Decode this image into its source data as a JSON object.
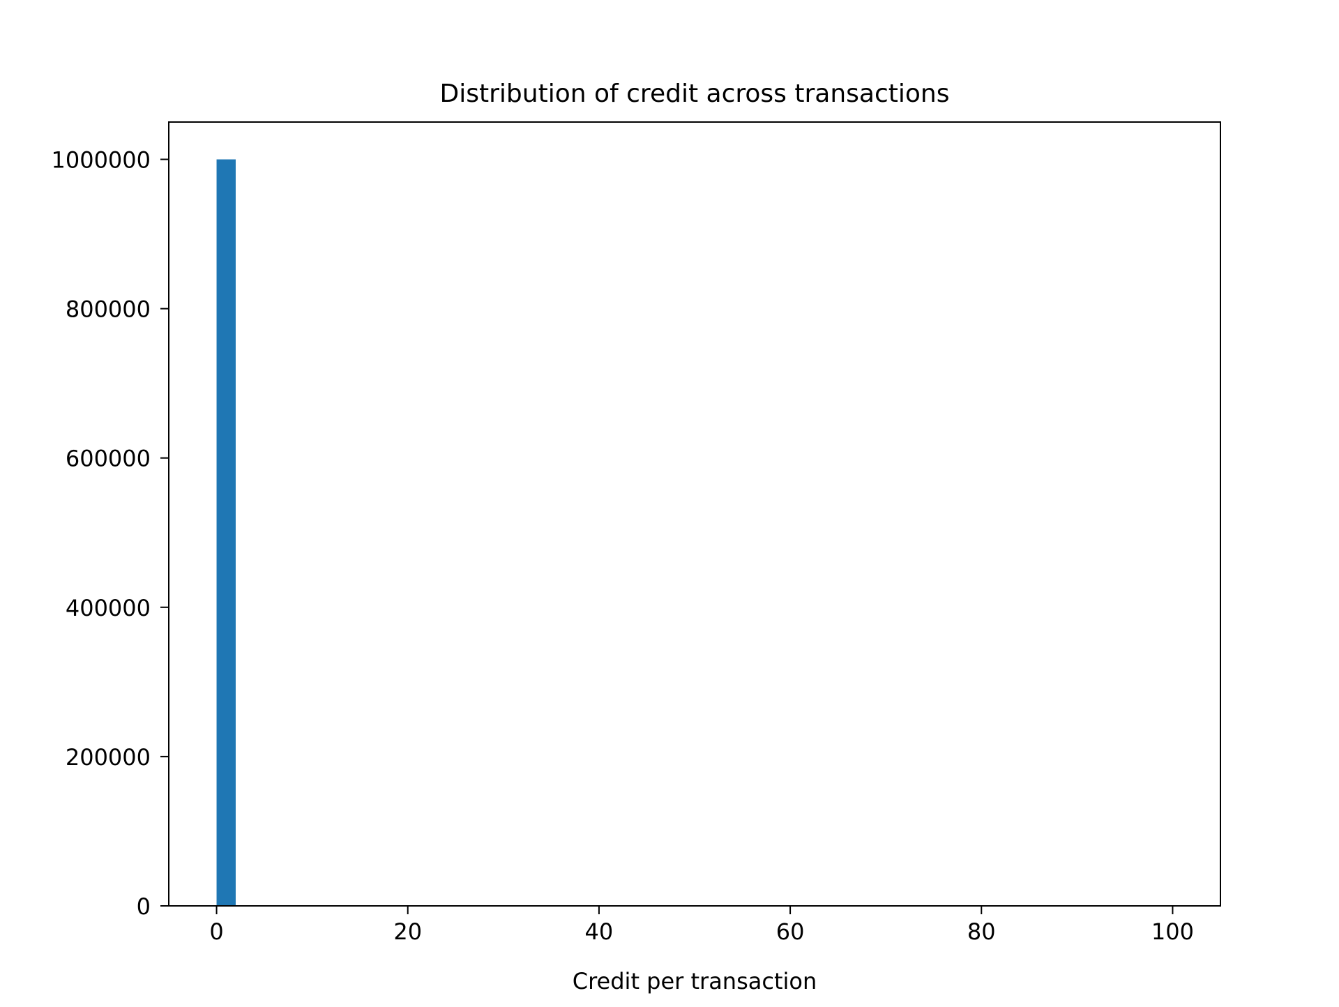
{
  "chart_data": {
    "type": "bar",
    "title": "Distribution of credit across transactions",
    "xlabel": "Credit per transaction",
    "ylabel": "",
    "xlim": [
      -5,
      105
    ],
    "ylim": [
      0,
      1050000
    ],
    "x_ticks": [
      0,
      20,
      40,
      60,
      80,
      100
    ],
    "y_ticks": [
      0,
      200000,
      400000,
      600000,
      800000,
      1000000
    ],
    "bins": [
      {
        "x0": 0,
        "x1": 2,
        "count": 1000000
      }
    ],
    "grid": false,
    "legend": "none",
    "bar_color": "#1f77b4"
  }
}
